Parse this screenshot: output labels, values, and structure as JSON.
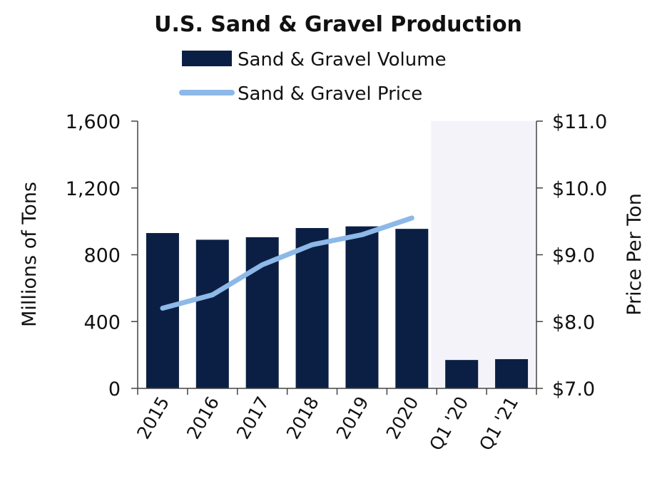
{
  "chart_data": {
    "type": "bar",
    "title": "U.S. Sand & Gravel Production",
    "categories": [
      "2015",
      "2016",
      "2017",
      "2018",
      "2019",
      "2020",
      "Q1 '20",
      "Q1 '21"
    ],
    "series": [
      {
        "name": "Sand & Gravel Volume",
        "type": "bar",
        "axis": "left",
        "values": [
          930,
          890,
          905,
          960,
          970,
          955,
          170,
          175
        ]
      },
      {
        "name": "Sand & Gravel Price",
        "type": "line",
        "axis": "right",
        "values": [
          8.2,
          8.4,
          8.85,
          9.15,
          9.3,
          9.55,
          null,
          null
        ]
      }
    ],
    "ylabel": "Millions of Tons",
    "y2label": "Price Per Ton",
    "ylim": [
      0,
      1600
    ],
    "y2lim": [
      7.0,
      11.0
    ],
    "yticks": [
      "0",
      "400",
      "800",
      "1,200",
      "1,600"
    ],
    "y2ticks": [
      "$7.0",
      "$8.0",
      "$9.0",
      "$10.0",
      "$11.0"
    ],
    "highlight_categories": [
      "Q1 '20",
      "Q1 '21"
    ],
    "legend_position": "top",
    "grid": false,
    "colors": {
      "bar": "#0b1f44",
      "line": "#8db8e8",
      "highlight": "#f4f3fa"
    }
  }
}
